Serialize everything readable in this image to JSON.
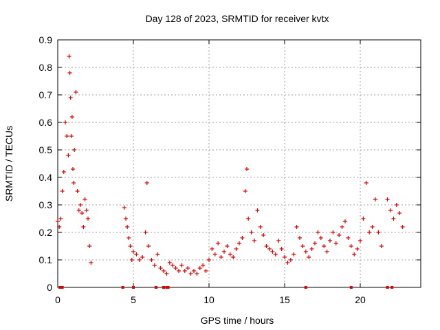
{
  "chart_data": {
    "type": "scatter",
    "title": "Day 128 of 2023, SRMTID for receiver kvtx",
    "xlabel": "GPS time / hours",
    "ylabel": "SRMTID / TECUs",
    "xlim": [
      0,
      24
    ],
    "ylim": [
      0,
      0.9
    ],
    "xticks": [
      0,
      5,
      10,
      15,
      20
    ],
    "xtick_labels": [
      "0",
      "5",
      "10",
      "15",
      "20"
    ],
    "yticks": [
      0,
      0.1,
      0.2,
      0.3,
      0.4,
      0.5,
      0.6,
      0.7,
      0.8,
      0.9
    ],
    "ytick_labels": [
      "0",
      "0.1",
      "0.2",
      "0.3",
      "0.4",
      "0.5",
      "0.6",
      "0.7",
      "0.8",
      "0.9"
    ],
    "grid": true,
    "marker": "+",
    "color": "#e00000",
    "series": [
      {
        "name": "SRMTID",
        "x": [
          0.0,
          0.1,
          0.2,
          0.3,
          0.4,
          0.5,
          0.6,
          0.7,
          0.75,
          0.8,
          0.85,
          0.9,
          0.95,
          1.0,
          1.05,
          1.1,
          1.2,
          1.3,
          1.4,
          1.5,
          1.6,
          1.7,
          1.8,
          1.9,
          2.0,
          2.1,
          2.2,
          4.4,
          4.5,
          4.6,
          4.7,
          4.8,
          4.9,
          5.0,
          5.2,
          5.4,
          5.6,
          5.8,
          5.9,
          6.0,
          6.2,
          6.4,
          6.6,
          6.8,
          7.0,
          7.2,
          7.4,
          7.6,
          7.8,
          8.0,
          8.2,
          8.4,
          8.6,
          8.8,
          9.0,
          9.2,
          9.4,
          9.6,
          9.8,
          10.0,
          10.2,
          10.4,
          10.6,
          10.8,
          11.0,
          11.2,
          11.4,
          11.6,
          11.8,
          12.0,
          12.2,
          12.4,
          12.5,
          12.6,
          12.8,
          13.0,
          13.2,
          13.4,
          13.6,
          13.8,
          14.0,
          14.2,
          14.4,
          14.6,
          14.8,
          15.0,
          15.2,
          15.4,
          15.6,
          15.8,
          16.0,
          16.2,
          16.4,
          16.6,
          16.8,
          17.0,
          17.2,
          17.4,
          17.6,
          17.8,
          18.0,
          18.2,
          18.4,
          18.6,
          18.8,
          19.0,
          19.2,
          19.4,
          19.6,
          19.8,
          20.0,
          20.2,
          20.4,
          20.6,
          20.8,
          21.0,
          21.2,
          21.4,
          21.8,
          22.0,
          22.2,
          22.4,
          22.6,
          22.8
        ],
        "y": [
          0.24,
          0.22,
          0.25,
          0.35,
          0.42,
          0.6,
          0.55,
          0.48,
          0.84,
          0.78,
          0.69,
          0.55,
          0.62,
          0.43,
          0.38,
          0.5,
          0.71,
          0.35,
          0.28,
          0.3,
          0.27,
          0.22,
          0.32,
          0.28,
          0.25,
          0.15,
          0.09,
          0.29,
          0.25,
          0.22,
          0.18,
          0.15,
          0.1,
          0.13,
          0.12,
          0.1,
          0.11,
          0.2,
          0.38,
          0.15,
          0.1,
          0.08,
          0.12,
          0.07,
          0.06,
          0.05,
          0.09,
          0.08,
          0.07,
          0.06,
          0.08,
          0.06,
          0.07,
          0.05,
          0.06,
          0.05,
          0.07,
          0.08,
          0.06,
          0.1,
          0.14,
          0.12,
          0.16,
          0.11,
          0.13,
          0.15,
          0.12,
          0.11,
          0.14,
          0.16,
          0.18,
          0.35,
          0.43,
          0.25,
          0.2,
          0.17,
          0.28,
          0.22,
          0.19,
          0.15,
          0.14,
          0.13,
          0.12,
          0.17,
          0.14,
          0.11,
          0.09,
          0.1,
          0.12,
          0.22,
          0.18,
          0.15,
          0.13,
          0.11,
          0.14,
          0.16,
          0.2,
          0.18,
          0.15,
          0.13,
          0.17,
          0.2,
          0.16,
          0.19,
          0.22,
          0.24,
          0.18,
          0.15,
          0.12,
          0.14,
          0.17,
          0.25,
          0.38,
          0.2,
          0.22,
          0.32,
          0.2,
          0.15,
          0.32,
          0.28,
          0.25,
          0.3,
          0.27,
          0.22
        ]
      }
    ],
    "gap_markers_x": [
      0.15,
      0.3,
      4.3,
      5.0,
      6.5,
      7.0,
      7.2,
      7.3,
      16.4,
      19.4,
      21.8,
      22.1
    ]
  }
}
